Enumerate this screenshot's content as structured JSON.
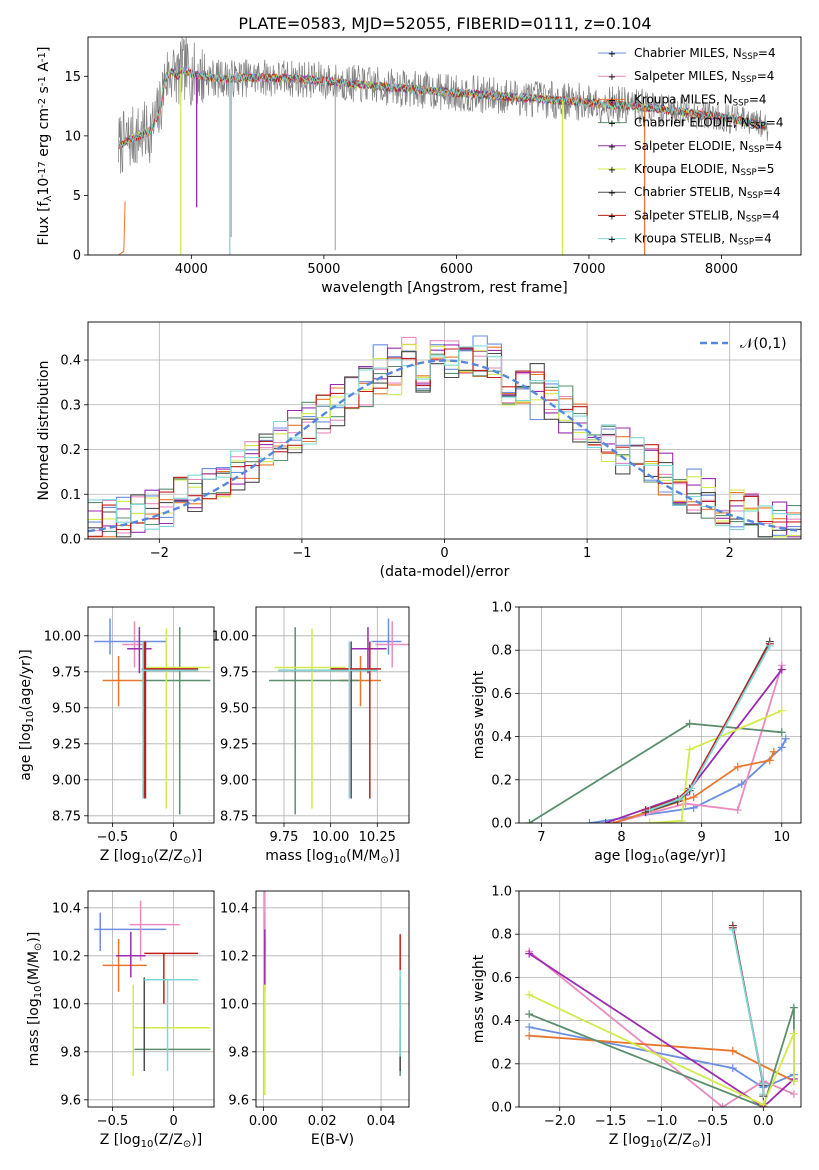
{
  "figure": {
    "title": "PLATE=0583, MJD=52055, FIBERID=0111, z=0.104"
  },
  "models": [
    {
      "name": "Chabrier MILES, N$_{SSP}$=4",
      "color": "#6b8fe0",
      "marker": "+"
    },
    {
      "name": "Salpeter MILES, N$_{SSP}$=4",
      "color": "#ea8bc0",
      "marker": "+"
    },
    {
      "name": "Kroupa MILES, N$_{SSP}$=4",
      "color": "#e8772e",
      "marker": "+"
    },
    {
      "name": "Chabrier ELODIE, N$_{SSP}$=4",
      "color": "#5b8f6e",
      "marker": "+"
    },
    {
      "name": "Salpeter ELODIE, N$_{SSP}$=4",
      "color": "#9b2bb0",
      "marker": "+"
    },
    {
      "name": "Kroupa ELODIE, N$_{SSP}$=5",
      "color": "#d3ea4d",
      "marker": "+"
    },
    {
      "name": "Chabrier STELIB, N$_{SSP}$=4",
      "color": "#4d4d4d",
      "marker": "+"
    },
    {
      "name": "Salpeter STELIB, N$_{SSP}$=4",
      "color": "#c0201c",
      "marker": "+"
    },
    {
      "name": "Kroupa STELIB, N$_{SSP}$=4",
      "color": "#7fd8d8",
      "marker": "+"
    }
  ],
  "chart_data": [
    {
      "id": "spectrum",
      "type": "line",
      "xlabel": "wavelength [Angstrom, rest frame]",
      "ylabel": "Flux [f$_\\lambda$10$^{-17}$ erg cm$^{-2}$ s$^{-1}$ A$^{-1}$]",
      "xlim": [
        3220,
        8600
      ],
      "ylim": [
        0,
        18.3
      ],
      "xticks": [
        4000,
        5000,
        6000,
        7000,
        8000
      ],
      "yticks": [
        0,
        5,
        10,
        15
      ],
      "data_color": "#808080",
      "data_noise_amplitude": 1.6,
      "model_curve": {
        "x": [
          3450,
          3550,
          3650,
          3700,
          3760,
          3800,
          3850,
          3900,
          3950,
          4000,
          4200,
          4500,
          4800,
          5000,
          5500,
          6000,
          6500,
          7000,
          7500,
          8000,
          8350
        ],
        "y": [
          9.2,
          9.8,
          10.2,
          10.5,
          12.0,
          14.8,
          15.4,
          15.0,
          15.6,
          15.2,
          14.8,
          14.9,
          14.8,
          14.6,
          14.1,
          13.6,
          13.2,
          12.8,
          12.3,
          11.6,
          10.8
        ]
      },
      "model_starts": [
        3450,
        3450,
        3450,
        3450,
        3450,
        3450,
        3450,
        3450,
        3450
      ],
      "dips": [
        {
          "x": 3920,
          "model": 5,
          "to": 0
        },
        {
          "x": 4040,
          "model": 4,
          "to": 4.0
        },
        {
          "x": 4290,
          "model": 8,
          "to": 0
        },
        {
          "x": 6800,
          "model": 5,
          "to": 0
        },
        {
          "x": 7420,
          "model": 2,
          "to": 0
        }
      ],
      "data_spikes": [
        {
          "x": 5085,
          "to": 0.4
        },
        {
          "x": 4300,
          "to": 1.5
        },
        {
          "x": 3930,
          "to": 18.3
        },
        {
          "x": 3960,
          "to": 18.3
        }
      ]
    },
    {
      "id": "residuals",
      "type": "histogram",
      "xlabel": "(data-model)/error",
      "ylabel": "Normed distribution",
      "xlim": [
        -2.5,
        2.5
      ],
      "ylim": [
        0,
        0.485
      ],
      "xticks": [
        -2,
        -1,
        0,
        1,
        2
      ],
      "yticks": [
        0.0,
        0.1,
        0.2,
        0.3,
        0.4
      ],
      "bin_width": 0.1,
      "bin_start": -2.5,
      "bins": 50,
      "reference": {
        "name": "$\\mathcal{N}(0,1)$",
        "mean": 0,
        "sigma": 1,
        "color": "#5588dd"
      },
      "jitter_amplitude": 0.05
    },
    {
      "id": "age_vs_Z",
      "type": "errorbar",
      "xlabel": "Z [log$_{10}$($Z/Z_\\odot$)]",
      "ylabel": "age  [log$_{10}$($age/yr$)]",
      "xlim": [
        -0.7,
        0.33
      ],
      "ylim": [
        8.7,
        10.2
      ],
      "xticks": [
        -0.5,
        0.0
      ],
      "yticks": [
        8.75,
        9.0,
        9.25,
        9.5,
        9.75,
        10.0
      ],
      "points": [
        {
          "model": 0,
          "x": -0.52,
          "xlo": -0.65,
          "xhi": -0.06,
          "y": 9.96,
          "ylo": 9.87,
          "yhi": 10.12
        },
        {
          "model": 1,
          "x": -0.32,
          "xlo": -0.42,
          "xhi": -0.22,
          "y": 9.94,
          "ylo": 9.78,
          "yhi": 10.1
        },
        {
          "model": 2,
          "x": -0.45,
          "xlo": -0.58,
          "xhi": -0.22,
          "y": 9.69,
          "ylo": 9.51,
          "yhi": 9.86
        },
        {
          "model": 3,
          "x": 0.05,
          "xlo": -0.26,
          "xhi": 0.3,
          "y": 9.69,
          "ylo": 8.76,
          "yhi": 10.06
        },
        {
          "model": 4,
          "x": -0.28,
          "xlo": -0.38,
          "xhi": -0.18,
          "y": 9.91,
          "ylo": 9.74,
          "yhi": 10.06
        },
        {
          "model": 5,
          "x": -0.06,
          "xlo": -0.22,
          "xhi": 0.3,
          "y": 9.78,
          "ylo": 8.8,
          "yhi": 10.05
        },
        {
          "model": 6,
          "x": -0.23,
          "xlo": -0.26,
          "xhi": 0.2,
          "y": 9.76,
          "ylo": 8.87,
          "yhi": 9.96
        },
        {
          "model": 7,
          "x": -0.24,
          "xlo": -0.26,
          "xhi": 0.2,
          "y": 9.77,
          "ylo": 8.87,
          "yhi": 9.96
        },
        {
          "model": 8,
          "x": -0.25,
          "xlo": -0.26,
          "xhi": 0.2,
          "y": 9.76,
          "ylo": 8.87,
          "yhi": 9.96
        }
      ]
    },
    {
      "id": "age_vs_mass",
      "type": "errorbar",
      "xlabel": "mass [log$_{10}$($M/M_\\odot$)]",
      "ylabel": "",
      "xlim": [
        9.6,
        10.42
      ],
      "ylim": [
        8.7,
        10.2
      ],
      "xticks": [
        9.75,
        10.0,
        10.25
      ],
      "xticklabels": [
        "9.75",
        "10.00",
        "10.25"
      ],
      "yticks": [
        8.75,
        9.0,
        9.25,
        9.5,
        9.75,
        10.0
      ],
      "points": [
        {
          "model": 0,
          "x": 10.31,
          "xlo": 10.22,
          "xhi": 10.38,
          "y": 9.96,
          "ylo": 9.87,
          "yhi": 10.12
        },
        {
          "model": 1,
          "x": 10.33,
          "xlo": 10.24,
          "xhi": 10.43,
          "y": 9.94,
          "ylo": 9.78,
          "yhi": 10.1
        },
        {
          "model": 2,
          "x": 10.16,
          "xlo": 10.05,
          "xhi": 10.27,
          "y": 9.69,
          "ylo": 9.51,
          "yhi": 9.86
        },
        {
          "model": 3,
          "x": 9.81,
          "xlo": 9.67,
          "xhi": 10.15,
          "y": 9.69,
          "ylo": 8.76,
          "yhi": 10.06
        },
        {
          "model": 4,
          "x": 10.2,
          "xlo": 10.11,
          "xhi": 10.3,
          "y": 9.91,
          "ylo": 9.74,
          "yhi": 10.06
        },
        {
          "model": 5,
          "x": 9.9,
          "xlo": 9.7,
          "xhi": 10.08,
          "y": 9.78,
          "ylo": 8.8,
          "yhi": 10.05
        },
        {
          "model": 6,
          "x": 10.11,
          "xlo": 9.72,
          "xhi": 10.25,
          "y": 9.76,
          "ylo": 8.87,
          "yhi": 9.96
        },
        {
          "model": 7,
          "x": 10.21,
          "xlo": 10.0,
          "xhi": 10.27,
          "y": 9.77,
          "ylo": 8.87,
          "yhi": 9.96
        },
        {
          "model": 8,
          "x": 10.1,
          "xlo": 9.72,
          "xhi": 10.25,
          "y": 9.76,
          "ylo": 8.87,
          "yhi": 9.96
        }
      ]
    },
    {
      "id": "mass_vs_Z",
      "type": "errorbar",
      "xlabel": "Z [log$_{10}$($Z/Z_\\odot$)]",
      "ylabel": "mass [log$_{10}$($M/M_\\odot$)]",
      "xlim": [
        -0.7,
        0.33
      ],
      "ylim": [
        9.57,
        10.47
      ],
      "xticks": [
        -0.5,
        0.0
      ],
      "yticks": [
        9.6,
        9.8,
        10.0,
        10.2,
        10.4
      ],
      "points": [
        {
          "model": 0,
          "x": -0.6,
          "xlo": -0.65,
          "xhi": -0.06,
          "y": 10.31,
          "ylo": 10.22,
          "yhi": 10.38
        },
        {
          "model": 1,
          "x": -0.27,
          "xlo": -0.36,
          "xhi": 0.05,
          "y": 10.33,
          "ylo": 10.18,
          "yhi": 10.43
        },
        {
          "model": 2,
          "x": -0.45,
          "xlo": -0.58,
          "xhi": -0.22,
          "y": 10.16,
          "ylo": 10.05,
          "yhi": 10.27
        },
        {
          "model": 3,
          "x": -0.3,
          "xlo": -0.32,
          "xhi": 0.3,
          "y": 9.81,
          "ylo": 9.81,
          "yhi": 9.81
        },
        {
          "model": 4,
          "x": -0.35,
          "xlo": -0.47,
          "xhi": -0.23,
          "y": 10.2,
          "ylo": 10.11,
          "yhi": 10.3
        },
        {
          "model": 5,
          "x": -0.33,
          "xlo": -0.33,
          "xhi": 0.3,
          "y": 9.9,
          "ylo": 9.7,
          "yhi": 10.08
        },
        {
          "model": 6,
          "x": -0.24,
          "xlo": -0.24,
          "xhi": -0.24,
          "y": 9.82,
          "ylo": 9.72,
          "yhi": 10.11
        },
        {
          "model": 7,
          "x": -0.08,
          "xlo": -0.24,
          "xhi": 0.2,
          "y": 10.21,
          "ylo": 10.0,
          "yhi": 10.21
        },
        {
          "model": 8,
          "x": -0.05,
          "xlo": -0.24,
          "xhi": 0.2,
          "y": 10.1,
          "ylo": 9.72,
          "yhi": 10.1
        }
      ]
    },
    {
      "id": "mass_vs_ebv",
      "type": "errorbar",
      "xlabel": "E(B-V)",
      "ylabel": "",
      "xlim": [
        -0.0025,
        0.0495
      ],
      "ylim": [
        9.57,
        10.47
      ],
      "xticks": [
        0.0,
        0.02,
        0.04
      ],
      "xticklabels": [
        "0.00",
        "0.02",
        "0.04"
      ],
      "yticks": [
        9.6,
        9.8,
        10.0,
        10.2,
        10.4
      ],
      "points": [
        {
          "model": 0,
          "x": 0.0005,
          "xlo": 0.0005,
          "xhi": 0.0005,
          "y": 10.31,
          "ylo": 10.22,
          "yhi": 10.38
        },
        {
          "model": 1,
          "x": 0.0005,
          "xlo": 0.0005,
          "xhi": 0.0005,
          "y": 10.33,
          "ylo": 10.18,
          "yhi": 10.47
        },
        {
          "model": 2,
          "x": 0.0005,
          "xlo": 0.0005,
          "xhi": 0.0005,
          "y": 10.16,
          "ylo": 10.05,
          "yhi": 10.27
        },
        {
          "model": 3,
          "x": 0.0465,
          "xlo": 0.0465,
          "xhi": 0.0465,
          "y": 9.81,
          "ylo": 9.7,
          "yhi": 9.9
        },
        {
          "model": 4,
          "x": 0.0005,
          "xlo": 0.0005,
          "xhi": 0.0005,
          "y": 10.2,
          "ylo": 10.08,
          "yhi": 10.31
        },
        {
          "model": 5,
          "x": 0.0005,
          "xlo": 0.0005,
          "xhi": 0.0005,
          "y": 9.9,
          "ylo": 9.62,
          "yhi": 10.08
        },
        {
          "model": 6,
          "x": 0.0465,
          "xlo": 0.0465,
          "xhi": 0.0465,
          "y": 9.82,
          "ylo": 9.72,
          "yhi": 10.11
        },
        {
          "model": 7,
          "x": 0.0465,
          "xlo": 0.0465,
          "xhi": 0.0465,
          "y": 10.21,
          "ylo": 10.14,
          "yhi": 10.29
        },
        {
          "model": 8,
          "x": 0.0465,
          "xlo": 0.0465,
          "xhi": 0.0465,
          "y": 10.1,
          "ylo": 9.78,
          "yhi": 10.14
        }
      ]
    },
    {
      "id": "weight_vs_age",
      "type": "line",
      "xlabel": "age  [log$_{10}$($age/yr$)]",
      "ylabel": "mass weight",
      "xlim": [
        6.72,
        10.24
      ],
      "ylim": [
        0,
        1.0
      ],
      "xticks": [
        7,
        8,
        9,
        10
      ],
      "yticks": [
        0.0,
        0.2,
        0.4,
        0.6,
        0.8,
        1.0
      ],
      "series": [
        {
          "model": 0,
          "x": [
            7.6,
            8.9,
            9.5,
            10.0,
            10.05
          ],
          "y": [
            0.0,
            0.07,
            0.18,
            0.35,
            0.39
          ]
        },
        {
          "model": 1,
          "x": [
            7.9,
            8.8,
            9.45,
            10.0
          ],
          "y": [
            0.0,
            0.09,
            0.06,
            0.73
          ]
        },
        {
          "model": 2,
          "x": [
            7.9,
            8.9,
            9.45,
            9.85,
            9.9
          ],
          "y": [
            0.0,
            0.12,
            0.26,
            0.29,
            0.33
          ]
        },
        {
          "model": 3,
          "x": [
            6.85,
            8.85,
            10.0
          ],
          "y": [
            0.0,
            0.46,
            0.42
          ]
        },
        {
          "model": 4,
          "x": [
            7.8,
            8.8,
            10.0
          ],
          "y": [
            0.0,
            0.13,
            0.71
          ]
        },
        {
          "model": 5,
          "x": [
            8.35,
            8.75,
            8.85,
            10.0
          ],
          "y": [
            0.0,
            0.01,
            0.34,
            0.52
          ]
        },
        {
          "model": 6,
          "x": [
            8.3,
            8.7,
            8.85,
            9.85
          ],
          "y": [
            0.05,
            0.1,
            0.15,
            0.84
          ]
        },
        {
          "model": 7,
          "x": [
            8.3,
            8.7,
            8.85,
            9.85
          ],
          "y": [
            0.06,
            0.11,
            0.16,
            0.83
          ]
        },
        {
          "model": 8,
          "x": [
            8.35,
            8.72,
            8.87,
            9.85
          ],
          "y": [
            0.06,
            0.11,
            0.16,
            0.82
          ]
        }
      ]
    },
    {
      "id": "weight_vs_Z",
      "type": "line",
      "xlabel": "Z [log$_{10}$($Z/Z_\\odot$)]",
      "ylabel": "mass weight",
      "xlim": [
        -2.4,
        0.37
      ],
      "ylim": [
        0,
        1.0
      ],
      "xticks": [
        -2.0,
        -1.5,
        -1.0,
        -0.5,
        0.0
      ],
      "xticklabels": [
        "−2.0",
        "−1.5",
        "−1.0",
        "−0.5",
        "0.0"
      ],
      "yticks": [
        0.0,
        0.2,
        0.4,
        0.6,
        0.8,
        1.0
      ],
      "series": [
        {
          "model": 0,
          "x": [
            -2.3,
            -0.3,
            0.0,
            0.3
          ],
          "y": [
            0.37,
            0.18,
            0.09,
            0.15
          ]
        },
        {
          "model": 1,
          "x": [
            -2.3,
            -0.4,
            0.0,
            0.3
          ],
          "y": [
            0.72,
            0.0,
            0.12,
            0.06
          ]
        },
        {
          "model": 2,
          "x": [
            -2.3,
            -0.3,
            0.3
          ],
          "y": [
            0.33,
            0.26,
            0.12
          ]
        },
        {
          "model": 3,
          "x": [
            -2.3,
            0.0,
            0.3,
            0.3
          ],
          "y": [
            0.43,
            0.0,
            0.46,
            0.12
          ]
        },
        {
          "model": 4,
          "x": [
            -2.3,
            0.0,
            0.3
          ],
          "y": [
            0.71,
            0.0,
            0.13
          ]
        },
        {
          "model": 5,
          "x": [
            -2.3,
            0.0,
            0.3,
            0.3
          ],
          "y": [
            0.52,
            0.01,
            0.34,
            0.12
          ]
        },
        {
          "model": 6,
          "x": [
            -0.3,
            0.0,
            0.0
          ],
          "y": [
            0.84,
            0.1,
            0.05
          ]
        },
        {
          "model": 7,
          "x": [
            -0.3,
            0.0,
            0.0
          ],
          "y": [
            0.83,
            0.11,
            0.06
          ]
        },
        {
          "model": 8,
          "x": [
            -0.3,
            0.0,
            0.0
          ],
          "y": [
            0.82,
            0.11,
            0.06
          ]
        }
      ]
    }
  ]
}
